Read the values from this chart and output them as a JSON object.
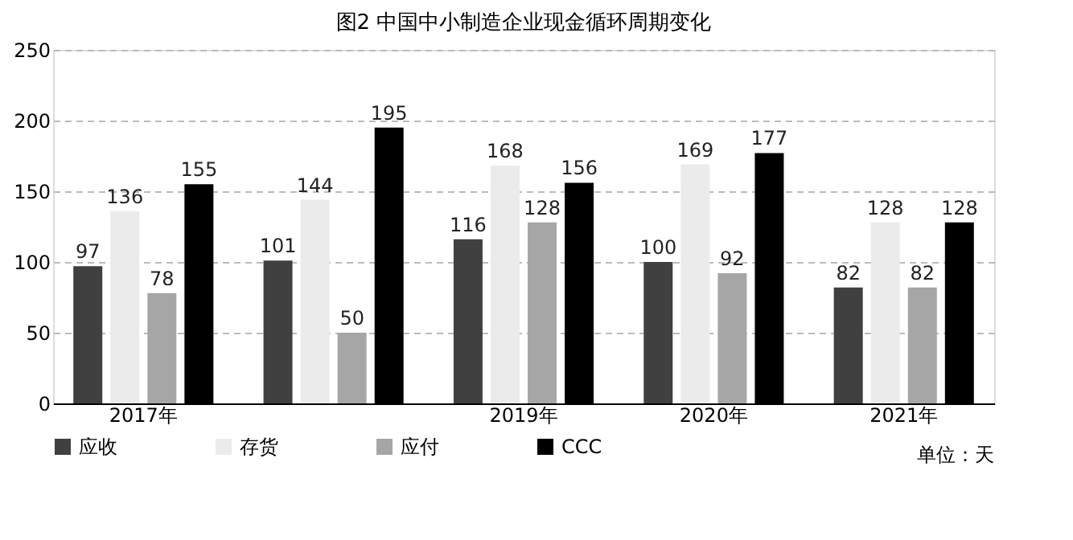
{
  "chart_data": {
    "type": "bar",
    "title": "图2 中国中小制造企业现金循环周期变化",
    "categories": [
      "2017年",
      null,
      "2019年",
      "2020年",
      "2021年"
    ],
    "series": [
      {
        "name": "应收",
        "color": "#404040",
        "values": [
          97,
          101,
          116,
          100,
          82
        ]
      },
      {
        "name": "存货",
        "color": "#ebebeb",
        "values": [
          136,
          144,
          168,
          169,
          128
        ]
      },
      {
        "name": "应付",
        "color": "#a6a6a6",
        "values": [
          78,
          50,
          128,
          92,
          82
        ]
      },
      {
        "name": "CCC",
        "color": "#000000",
        "values": [
          155,
          195,
          156,
          177,
          128
        ]
      }
    ],
    "ylim": [
      0,
      250
    ],
    "yticks": [
      0,
      50,
      100,
      150,
      200,
      250
    ],
    "grid": "y",
    "data_labels": true,
    "legend": "bottom",
    "annotations": [
      "单位：天"
    ]
  }
}
